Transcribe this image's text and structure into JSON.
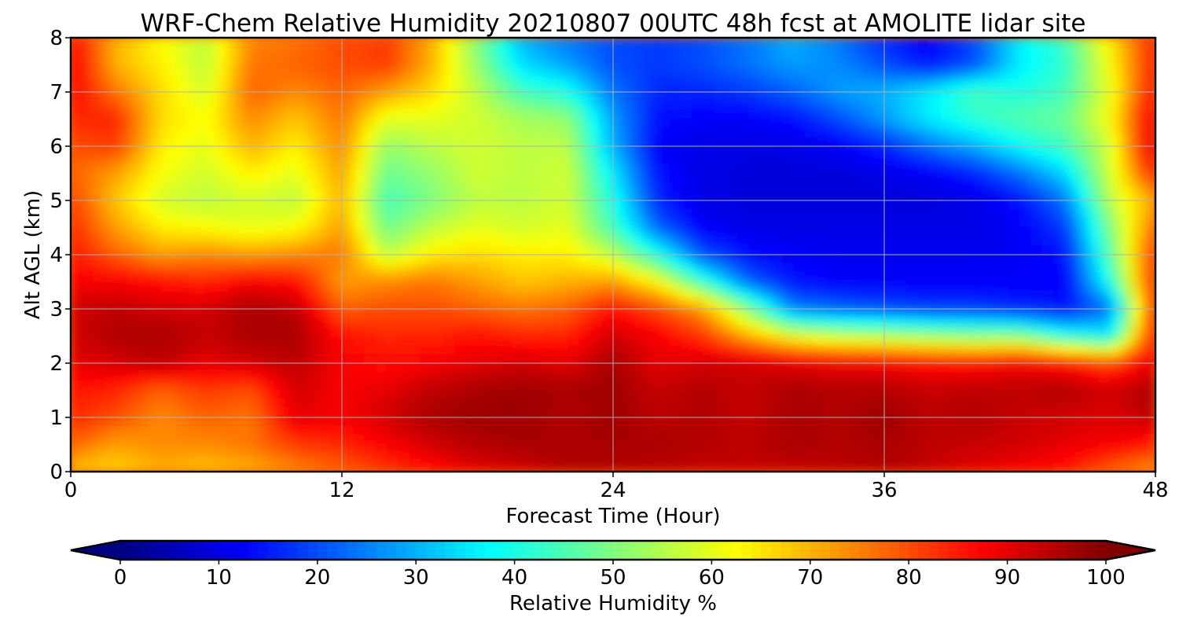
{
  "chart_data": {
    "type": "heatmap",
    "title": "WRF-Chem Relative Humidity 20210807 00UTC 48h fcst at AMOLITE lidar site",
    "xlabel": "Forecast Time (Hour)",
    "ylabel": "Alt AGL (km)",
    "xlim": [
      0,
      48
    ],
    "ylim": [
      0,
      8
    ],
    "xticks": [
      0,
      12,
      24,
      36,
      48
    ],
    "yticks": [
      0,
      1,
      2,
      3,
      4,
      5,
      6,
      7,
      8
    ],
    "grid": true,
    "colormap": "jet",
    "x": [
      0,
      2,
      4,
      6,
      8,
      10,
      12,
      14,
      16,
      18,
      20,
      22,
      24,
      26,
      28,
      30,
      32,
      34,
      36,
      38,
      40,
      42,
      44,
      46,
      48
    ],
    "y": [
      0,
      0.5,
      1,
      1.5,
      2,
      2.5,
      3,
      3.5,
      4,
      4.5,
      5,
      5.5,
      6,
      6.5,
      7,
      7.5,
      8
    ],
    "z": [
      [
        68,
        66,
        70,
        68,
        70,
        74,
        78,
        82,
        86,
        90,
        92,
        95,
        95,
        94,
        93,
        93,
        93,
        94,
        95,
        93,
        90,
        88,
        85,
        78,
        72
      ],
      [
        78,
        72,
        74,
        74,
        76,
        82,
        84,
        88,
        92,
        95,
        96,
        96,
        96,
        96,
        95,
        94,
        96,
        95,
        96,
        94,
        93,
        92,
        90,
        88,
        85
      ],
      [
        84,
        80,
        74,
        78,
        76,
        90,
        88,
        92,
        96,
        97,
        97,
        95,
        97,
        94,
        95,
        93,
        96,
        95,
        97,
        94,
        95,
        93,
        92,
        91,
        94
      ],
      [
        86,
        84,
        78,
        82,
        80,
        92,
        88,
        90,
        94,
        96,
        97,
        96,
        97,
        93,
        95,
        93,
        96,
        95,
        95,
        93,
        94,
        94,
        95,
        92,
        96
      ],
      [
        90,
        92,
        94,
        90,
        92,
        94,
        88,
        86,
        88,
        90,
        92,
        90,
        96,
        90,
        92,
        92,
        90,
        88,
        88,
        86,
        86,
        88,
        86,
        80,
        90
      ],
      [
        92,
        95,
        96,
        93,
        96,
        96,
        86,
        84,
        84,
        86,
        84,
        84,
        92,
        88,
        82,
        70,
        60,
        56,
        54,
        52,
        50,
        50,
        40,
        36,
        88
      ],
      [
        92,
        94,
        92,
        92,
        96,
        94,
        78,
        80,
        80,
        78,
        76,
        78,
        86,
        80,
        72,
        50,
        25,
        22,
        20,
        18,
        18,
        16,
        14,
        24,
        86
      ],
      [
        88,
        88,
        86,
        84,
        88,
        86,
        72,
        74,
        76,
        72,
        68,
        70,
        72,
        62,
        42,
        22,
        14,
        12,
        12,
        12,
        12,
        12,
        12,
        40,
        86
      ],
      [
        86,
        78,
        72,
        74,
        72,
        74,
        76,
        56,
        64,
        66,
        64,
        64,
        56,
        40,
        20,
        14,
        12,
        11,
        11,
        11,
        11,
        12,
        14,
        46,
        84
      ],
      [
        84,
        72,
        64,
        62,
        60,
        62,
        72,
        48,
        56,
        60,
        58,
        60,
        44,
        22,
        12,
        10,
        10,
        10,
        10,
        10,
        10,
        12,
        18,
        50,
        78
      ],
      [
        82,
        68,
        58,
        56,
        58,
        56,
        70,
        44,
        50,
        56,
        56,
        58,
        40,
        16,
        10,
        9,
        9,
        9,
        9,
        9,
        10,
        14,
        24,
        56,
        72
      ],
      [
        78,
        72,
        62,
        58,
        64,
        60,
        72,
        48,
        52,
        58,
        56,
        58,
        36,
        14,
        10,
        9,
        9,
        9,
        10,
        12,
        16,
        24,
        34,
        58,
        86
      ],
      [
        80,
        82,
        64,
        60,
        70,
        64,
        74,
        52,
        56,
        58,
        56,
        56,
        30,
        12,
        10,
        10,
        10,
        12,
        16,
        24,
        30,
        38,
        44,
        58,
        94
      ],
      [
        84,
        84,
        66,
        62,
        74,
        68,
        76,
        60,
        60,
        58,
        54,
        52,
        28,
        14,
        12,
        12,
        14,
        20,
        28,
        36,
        42,
        46,
        48,
        62,
        92
      ],
      [
        88,
        76,
        66,
        58,
        78,
        74,
        78,
        72,
        66,
        56,
        44,
        40,
        24,
        16,
        16,
        18,
        22,
        28,
        30,
        36,
        44,
        40,
        44,
        60,
        88
      ],
      [
        90,
        70,
        64,
        56,
        76,
        78,
        80,
        82,
        70,
        52,
        34,
        28,
        20,
        18,
        20,
        24,
        28,
        26,
        20,
        14,
        20,
        36,
        42,
        62,
        86
      ],
      [
        88,
        70,
        62,
        56,
        74,
        76,
        80,
        82,
        70,
        50,
        30,
        24,
        20,
        18,
        20,
        24,
        30,
        24,
        16,
        12,
        20,
        36,
        44,
        64,
        86
      ]
    ],
    "colorbar": {
      "label": "Relative Humidity %",
      "range": [
        0,
        100
      ],
      "ticks": [
        0,
        10,
        20,
        30,
        40,
        50,
        60,
        70,
        80,
        90,
        100
      ],
      "extend": "both",
      "orientation": "horizontal",
      "placement": "bottom"
    }
  }
}
